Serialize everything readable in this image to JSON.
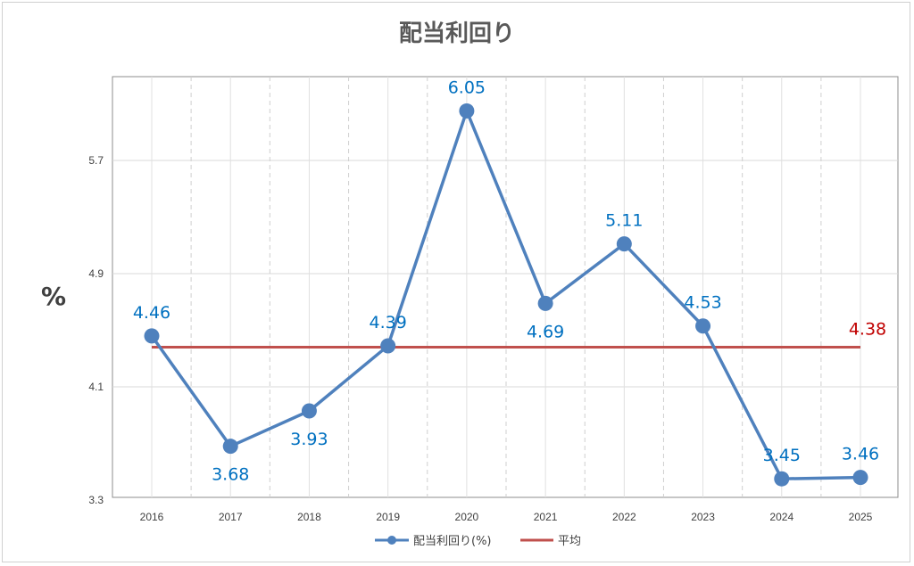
{
  "chart_data": {
    "type": "line",
    "title": "配当利回り",
    "ylabel": "%",
    "xlabel": "",
    "categories": [
      "2016",
      "2017",
      "2018",
      "2019",
      "2020",
      "2021",
      "2022",
      "2023",
      "2024",
      "2025"
    ],
    "ylim": [
      3.3,
      6.3
    ],
    "yticks": [
      "3.3",
      "4.1",
      "4.9",
      "5.7"
    ],
    "grid": true,
    "legend_position": "bottom",
    "series": [
      {
        "name": "配当利回り(%)",
        "color": "#4f81bd",
        "label_color": "#0070c0",
        "values": [
          4.46,
          3.68,
          3.93,
          4.39,
          6.05,
          4.69,
          5.11,
          4.53,
          3.45,
          3.46
        ],
        "labels": [
          "4.46",
          "3.68",
          "3.93",
          "4.39",
          "6.05",
          "4.69",
          "5.11",
          "4.53",
          "3.45",
          "3.46"
        ]
      },
      {
        "name": "平均",
        "color": "#c0504d",
        "label_color": "#c00000",
        "value": 4.38,
        "label": "4.38"
      }
    ]
  }
}
